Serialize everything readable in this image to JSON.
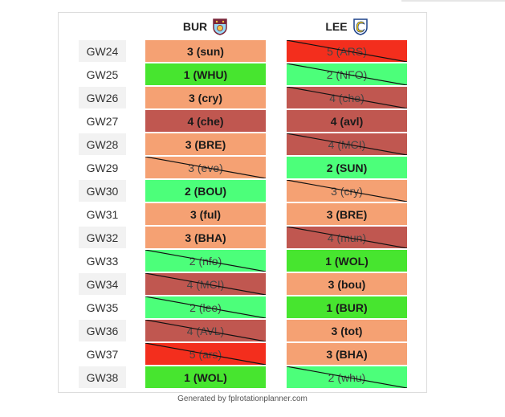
{
  "teams": [
    {
      "code": "BUR",
      "crest_icon": "burnley-crest-icon",
      "crest_colors": [
        "#7a263a",
        "#97d9f6",
        "#f3c649"
      ]
    },
    {
      "code": "LEE",
      "crest_icon": "leeds-crest-icon",
      "crest_colors": [
        "#ffffff",
        "#1d428a",
        "#ffcd00"
      ]
    }
  ],
  "difficulty_colors": {
    "1": "#47e52f",
    "2": "#4cff7a",
    "3": "#f5a173",
    "4": "#c05750",
    "5": "#f32e1d"
  },
  "gameweeks": [
    {
      "gw": "GW24",
      "BUR": {
        "label": "3 (sun)",
        "d": 3,
        "bench": false
      },
      "LEE": {
        "label": "5 (ARS)",
        "d": 5,
        "bench": true
      }
    },
    {
      "gw": "GW25",
      "BUR": {
        "label": "1 (WHU)",
        "d": 1,
        "bench": false
      },
      "LEE": {
        "label": "2 (NFO)",
        "d": 2,
        "bench": true
      }
    },
    {
      "gw": "GW26",
      "BUR": {
        "label": "3 (cry)",
        "d": 3,
        "bench": false
      },
      "LEE": {
        "label": "4 (che)",
        "d": 4,
        "bench": true
      }
    },
    {
      "gw": "GW27",
      "BUR": {
        "label": "4 (che)",
        "d": 4,
        "bench": false
      },
      "LEE": {
        "label": "4 (avl)",
        "d": 4,
        "bench": false
      }
    },
    {
      "gw": "GW28",
      "BUR": {
        "label": "3 (BRE)",
        "d": 3,
        "bench": false
      },
      "LEE": {
        "label": "4 (MCI)",
        "d": 4,
        "bench": true
      }
    },
    {
      "gw": "GW29",
      "BUR": {
        "label": "3 (eve)",
        "d": 3,
        "bench": true
      },
      "LEE": {
        "label": "2 (SUN)",
        "d": 2,
        "bench": false
      }
    },
    {
      "gw": "GW30",
      "BUR": {
        "label": "2 (BOU)",
        "d": 2,
        "bench": false
      },
      "LEE": {
        "label": "3 (cry)",
        "d": 3,
        "bench": true
      }
    },
    {
      "gw": "GW31",
      "BUR": {
        "label": "3 (ful)",
        "d": 3,
        "bench": false
      },
      "LEE": {
        "label": "3 (BRE)",
        "d": 3,
        "bench": false
      }
    },
    {
      "gw": "GW32",
      "BUR": {
        "label": "3 (BHA)",
        "d": 3,
        "bench": false
      },
      "LEE": {
        "label": "4 (mun)",
        "d": 4,
        "bench": true
      }
    },
    {
      "gw": "GW33",
      "BUR": {
        "label": "2 (nfo)",
        "d": 2,
        "bench": true
      },
      "LEE": {
        "label": "1 (WOL)",
        "d": 1,
        "bench": false
      }
    },
    {
      "gw": "GW34",
      "BUR": {
        "label": "4 (MCI)",
        "d": 4,
        "bench": true
      },
      "LEE": {
        "label": "3 (bou)",
        "d": 3,
        "bench": false
      }
    },
    {
      "gw": "GW35",
      "BUR": {
        "label": "2 (lee)",
        "d": 2,
        "bench": true
      },
      "LEE": {
        "label": "1 (BUR)",
        "d": 1,
        "bench": false
      }
    },
    {
      "gw": "GW36",
      "BUR": {
        "label": "4 (AVL)",
        "d": 4,
        "bench": true
      },
      "LEE": {
        "label": "3 (tot)",
        "d": 3,
        "bench": false
      }
    },
    {
      "gw": "GW37",
      "BUR": {
        "label": "5 (ars)",
        "d": 5,
        "bench": true
      },
      "LEE": {
        "label": "3 (BHA)",
        "d": 3,
        "bench": false
      }
    },
    {
      "gw": "GW38",
      "BUR": {
        "label": "1 (WOL)",
        "d": 1,
        "bench": false
      },
      "LEE": {
        "label": "2 (whu)",
        "d": 2,
        "bench": true
      }
    }
  ],
  "footer": "Generated by fplrotationplanner.com"
}
